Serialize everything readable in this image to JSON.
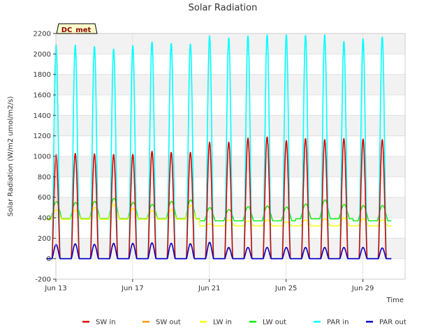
{
  "chart_data": {
    "type": "line",
    "title": "Solar Radiation",
    "xlabel": "Time",
    "ylabel": "Solar Radiation (W/m2 umol/m2/s)",
    "badge": "DC_met",
    "x_start": "Jun 12 00:00",
    "x_end": "Jun 31 00:00",
    "xlim_days": [
      13,
      31.2
    ],
    "ylim": [
      -200,
      2200
    ],
    "x_ticks": [
      {
        "day": 13,
        "label": "Jun 13"
      },
      {
        "day": 17,
        "label": "Jun 17"
      },
      {
        "day": 21,
        "label": "Jun 21"
      },
      {
        "day": 25,
        "label": "Jun 25"
      },
      {
        "day": 29,
        "label": "Jun 29"
      }
    ],
    "y_ticks": [
      -200,
      0,
      200,
      400,
      600,
      800,
      1000,
      1200,
      1400,
      1600,
      1800,
      2000,
      2200
    ],
    "grid": true,
    "legend_position": "bottom",
    "days": [
      13,
      14,
      15,
      16,
      17,
      18,
      19,
      20,
      21,
      22,
      23,
      24,
      25,
      26,
      27,
      28,
      29,
      30
    ],
    "series": [
      {
        "name": "SW in",
        "color": "#dd0000",
        "daily_peak": [
          1020,
          1030,
          1025,
          1020,
          1020,
          1050,
          1040,
          1040,
          1140,
          1140,
          1180,
          1190,
          1155,
          1175,
          1165,
          1175,
          1170,
          1165
        ]
      },
      {
        "name": "SW out",
        "color": "#ff9900",
        "daily_peak": [
          130,
          140,
          135,
          140,
          140,
          150,
          150,
          150,
          150,
          100,
          110,
          110,
          110,
          105,
          105,
          105,
          110,
          105
        ]
      },
      {
        "name": "LW in",
        "color": "#ffff00",
        "daily_peak": [
          480,
          475,
          500,
          530,
          490,
          470,
          480,
          520,
          340,
          380,
          370,
          380,
          360,
          380,
          390,
          400,
          390,
          380
        ]
      },
      {
        "name": "LW out",
        "color": "#00ee00",
        "daily_peak": [
          560,
          550,
          560,
          590,
          550,
          530,
          560,
          575,
          500,
          480,
          510,
          515,
          505,
          535,
          575,
          530,
          520,
          520
        ]
      },
      {
        "name": "PAR in",
        "color": "#00ffff",
        "daily_peak": [
          2095,
          2090,
          2075,
          2050,
          2085,
          2120,
          2105,
          2100,
          2180,
          2160,
          2180,
          2190,
          2190,
          2185,
          2190,
          2125,
          2150,
          2170
        ]
      },
      {
        "name": "PAR out",
        "color": "#0000cc",
        "daily_peak": [
          140,
          145,
          140,
          150,
          150,
          155,
          150,
          145,
          160,
          110,
          110,
          110,
          110,
          110,
          110,
          110,
          110,
          105
        ]
      }
    ]
  }
}
